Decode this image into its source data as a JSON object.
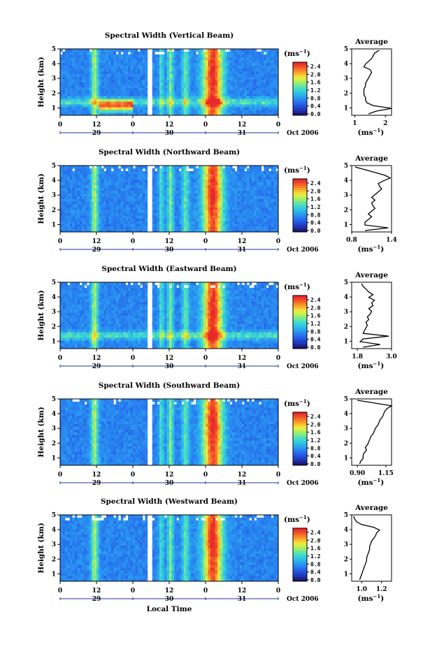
{
  "chart_data": [
    {
      "type": "heatmap",
      "title": "Spectral Width (Vertical Beam)",
      "ylabel": "Height (km)",
      "y_ticks": [
        "1",
        "2",
        "3",
        "4",
        "5"
      ],
      "x_ticks": [
        "0",
        "12",
        "0",
        "12",
        "0",
        "12",
        "0"
      ],
      "day_labels": [
        "29",
        "30",
        "31"
      ],
      "date_label": "Oct 2006",
      "colorbar_unit": "(ms",
      "colorbar_unit_exp": "−1",
      "colorbar_unit_close": ")",
      "colorbar_ticks": [
        "0.0",
        "0.4",
        "0.8",
        "1.2",
        "1.6",
        "2.0",
        "2.4"
      ],
      "ylim": [
        0.5,
        5.0
      ],
      "profile": {
        "title": "Average",
        "xlabel": "(ms",
        "xlabel_exp": "−1",
        "xlabel_close": ")",
        "x_ticks": [
          "1",
          "2"
        ],
        "xlim": [
          0.9,
          2.2
        ],
        "values": [
          1.45,
          1.7,
          2.2,
          1.6,
          1.4,
          1.35,
          1.35,
          1.3,
          1.3,
          1.3,
          1.35,
          1.35,
          1.4,
          1.45,
          1.5,
          1.55,
          1.5,
          1.3,
          1.35,
          1.45,
          1.55,
          1.6,
          1.65,
          1.8
        ]
      }
    },
    {
      "type": "heatmap",
      "title": "Spectral Width (Northward Beam)",
      "ylabel": "Height (km)",
      "y_ticks": [
        "1",
        "2",
        "3",
        "4",
        "5"
      ],
      "x_ticks": [
        "0",
        "12",
        "0",
        "12",
        "0",
        "12",
        "0"
      ],
      "day_labels": [
        "29",
        "30",
        "31"
      ],
      "date_label": "Oct 2006",
      "colorbar_unit": "(ms",
      "colorbar_unit_exp": "−1",
      "colorbar_unit_close": ")",
      "colorbar_ticks": [
        "0.0",
        "0.4",
        "0.8",
        "1.2",
        "1.6",
        "2.0",
        "2.4"
      ],
      "ylim": [
        0.5,
        5.0
      ],
      "profile": {
        "title": "Average",
        "xlabel": "(ms",
        "xlabel_exp": "−1",
        "xlabel_close": ")",
        "x_ticks": [
          "0.8",
          "1.4"
        ],
        "xlim": [
          0.8,
          1.4
        ],
        "values": [
          1.0,
          1.35,
          1.0,
          1.0,
          1.05,
          1.1,
          1.05,
          1.1,
          1.15,
          1.12,
          1.1,
          1.15,
          1.1,
          1.15,
          1.2,
          1.25,
          1.22,
          1.2,
          1.28,
          1.38,
          1.3,
          1.15,
          1.0,
          0.85
        ]
      }
    },
    {
      "type": "heatmap",
      "title": "Spectral Width (Eastward Beam)",
      "ylabel": "Height (km)",
      "y_ticks": [
        "1",
        "2",
        "3",
        "4",
        "5"
      ],
      "x_ticks": [
        "0",
        "12",
        "0",
        "12",
        "0",
        "12",
        "0"
      ],
      "day_labels": [
        "29",
        "30",
        "31"
      ],
      "date_label": "Oct 2006",
      "colorbar_unit": "(ms",
      "colorbar_unit_exp": "−1",
      "colorbar_unit_close": ")",
      "colorbar_ticks": [
        "0.0",
        "0.4",
        "0.8",
        "1.2",
        "1.6",
        "2.0",
        "2.4"
      ],
      "ylim": [
        0.5,
        5.0
      ],
      "profile": {
        "title": "Average",
        "xlabel": "(ms",
        "xlabel_exp": "−1",
        "xlabel_close": ")",
        "x_ticks": [
          "1.8",
          "3.0"
        ],
        "xlim": [
          1.6,
          3.0
        ],
        "values": [
          2.0,
          2.6,
          1.9,
          2.0,
          2.9,
          2.0,
          2.05,
          2.1,
          2.15,
          2.1,
          2.2,
          2.15,
          2.25,
          2.3,
          2.2,
          2.35,
          2.3,
          2.4,
          2.2,
          2.35,
          2.2,
          2.1,
          2.0,
          1.95
        ]
      }
    },
    {
      "type": "heatmap",
      "title": "Spectral Width (Southward Beam)",
      "ylabel": "Height (km)",
      "y_ticks": [
        "1",
        "2",
        "3",
        "4",
        "5"
      ],
      "x_ticks": [
        "0",
        "12",
        "0",
        "12",
        "0",
        "12",
        "0"
      ],
      "day_labels": [
        "29",
        "30",
        "31"
      ],
      "date_label": "Oct 2006",
      "colorbar_unit": "(ms",
      "colorbar_unit_exp": "−1",
      "colorbar_unit_close": ")",
      "colorbar_ticks": [
        "0.0",
        "0.4",
        "0.8",
        "1.2",
        "1.6",
        "2.0",
        "2.4"
      ],
      "ylim": [
        0.5,
        5.0
      ],
      "profile": {
        "title": "Average",
        "xlabel": "(ms",
        "xlabel_exp": "−1",
        "xlabel_close": ")",
        "x_ticks": [
          "0.90",
          "1.15"
        ],
        "xlim": [
          0.85,
          1.2
        ],
        "values": [
          0.92,
          0.93,
          0.95,
          0.95,
          0.96,
          0.98,
          0.97,
          0.99,
          1.0,
          1.01,
          1.02,
          1.04,
          1.05,
          1.06,
          1.08,
          1.09,
          1.1,
          1.12,
          1.13,
          1.14,
          1.16,
          1.2,
          1.05,
          0.9
        ]
      }
    },
    {
      "type": "heatmap",
      "title": "Spectral Width (Westward Beam)",
      "ylabel": "Height (km)",
      "y_ticks": [
        "1",
        "2",
        "3",
        "4",
        "5"
      ],
      "x_ticks": [
        "0",
        "12",
        "0",
        "12",
        "0",
        "12",
        "0"
      ],
      "day_labels": [
        "29",
        "30",
        "31"
      ],
      "date_label": "Oct 2006",
      "xlabel": "Local Time",
      "colorbar_unit": "(ms",
      "colorbar_unit_exp": "−1",
      "colorbar_unit_close": ")",
      "colorbar_ticks": [
        "0.0",
        "0.4",
        "0.8",
        "1.2",
        "1.6",
        "2.0",
        "2.4"
      ],
      "ylim": [
        0.5,
        5.0
      ],
      "profile": {
        "title": "Average",
        "xlabel": "(ms",
        "xlabel_exp": "−1",
        "xlabel_close": ")",
        "x_ticks": [
          "1.0",
          "1.2"
        ],
        "xlim": [
          0.9,
          1.3
        ],
        "values": [
          0.98,
          0.99,
          1.0,
          1.01,
          1.02,
          1.03,
          1.04,
          1.05,
          1.05,
          1.06,
          1.07,
          1.08,
          1.08,
          1.09,
          1.1,
          1.12,
          1.14,
          1.15,
          1.18,
          1.12,
          1.0,
          0.95,
          0.93,
          0.92
        ]
      }
    }
  ]
}
